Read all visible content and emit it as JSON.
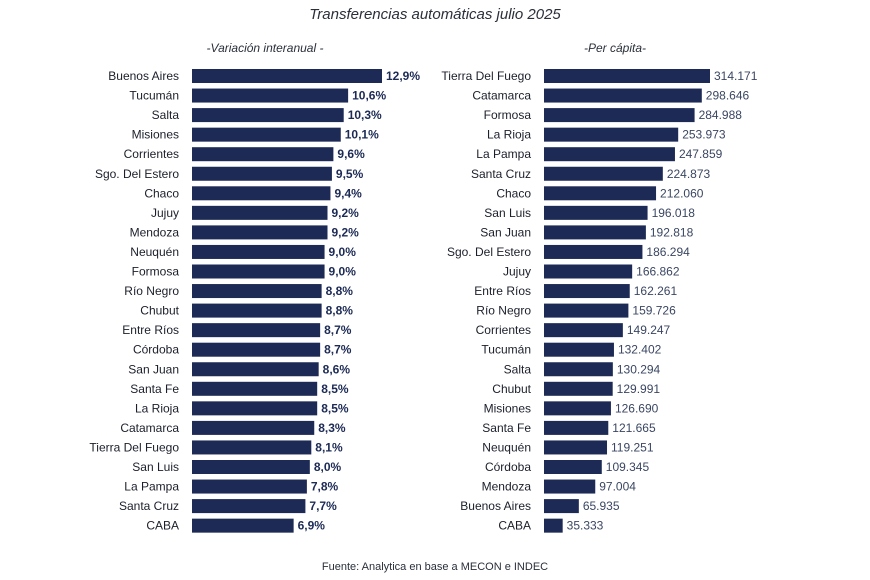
{
  "title": "Transferencias automáticas julio 2025",
  "source": "Fuente: Analytica en base a MECON e INDEC",
  "colors": {
    "bar": "#1c2a55"
  },
  "chart_data": [
    {
      "type": "bar",
      "orientation": "horizontal",
      "title": "-Variación interanual -",
      "categories": [
        "Buenos Aires",
        "Tucumán",
        "Salta",
        "Misiones",
        "Corrientes",
        "Sgo. Del Estero",
        "Chaco",
        "Jujuy",
        "Mendoza",
        "Neuquén",
        "Formosa",
        "Río Negro",
        "Chubut",
        "Entre Ríos",
        "Córdoba",
        "San Juan",
        "Santa Fe",
        "La Rioja",
        "Catamarca",
        "Tierra Del Fuego",
        "San Luis",
        "La Pampa",
        "Santa Cruz",
        "CABA"
      ],
      "values": [
        12.9,
        10.6,
        10.3,
        10.1,
        9.6,
        9.5,
        9.4,
        9.2,
        9.2,
        9.0,
        9.0,
        8.8,
        8.8,
        8.7,
        8.7,
        8.6,
        8.5,
        8.5,
        8.3,
        8.1,
        8.0,
        7.8,
        7.7,
        6.9
      ],
      "labels": [
        "12,9%",
        "10,6%",
        "10,3%",
        "10,1%",
        "9,6%",
        "9,5%",
        "9,4%",
        "9,2%",
        "9,2%",
        "9,0%",
        "9,0%",
        "8,8%",
        "8,8%",
        "8,7%",
        "8,7%",
        "8,6%",
        "8,5%",
        "8,5%",
        "8,3%",
        "8,1%",
        "8,0%",
        "7,8%",
        "7,7%",
        "6,9%"
      ],
      "xlim": [
        0,
        12.9
      ],
      "grid": false,
      "legend": "none"
    },
    {
      "type": "bar",
      "orientation": "horizontal",
      "title": "-Per cápita-",
      "categories": [
        "Tierra Del Fuego",
        "Catamarca",
        "Formosa",
        "La Rioja",
        "La Pampa",
        "Santa Cruz",
        "Chaco",
        "San Luis",
        "San Juan",
        "Sgo. Del Estero",
        "Jujuy",
        "Entre Ríos",
        "Río Negro",
        "Corrientes",
        "Tucumán",
        "Salta",
        "Chubut",
        "Misiones",
        "Santa Fe",
        "Neuquén",
        "Córdoba",
        "Mendoza",
        "Buenos Aires",
        "CABA"
      ],
      "values": [
        314171,
        298646,
        284988,
        253973,
        247859,
        224873,
        212060,
        196018,
        192818,
        186294,
        166862,
        162261,
        159726,
        149247,
        132402,
        130294,
        129991,
        126690,
        121665,
        119251,
        109345,
        97004,
        65935,
        35333
      ],
      "labels": [
        "314.171",
        "298.646",
        "284.988",
        "253.973",
        "247.859",
        "224.873",
        "212.060",
        "196.018",
        "192.818",
        "186.294",
        "166.862",
        "162.261",
        "159.726",
        "149.247",
        "132.402",
        "130.294",
        "129.991",
        "126.690",
        "121.665",
        "119.251",
        "109.345",
        "97.004",
        "65.935",
        "35.333"
      ],
      "xlim": [
        0,
        314171
      ],
      "grid": false,
      "legend": "none"
    }
  ]
}
